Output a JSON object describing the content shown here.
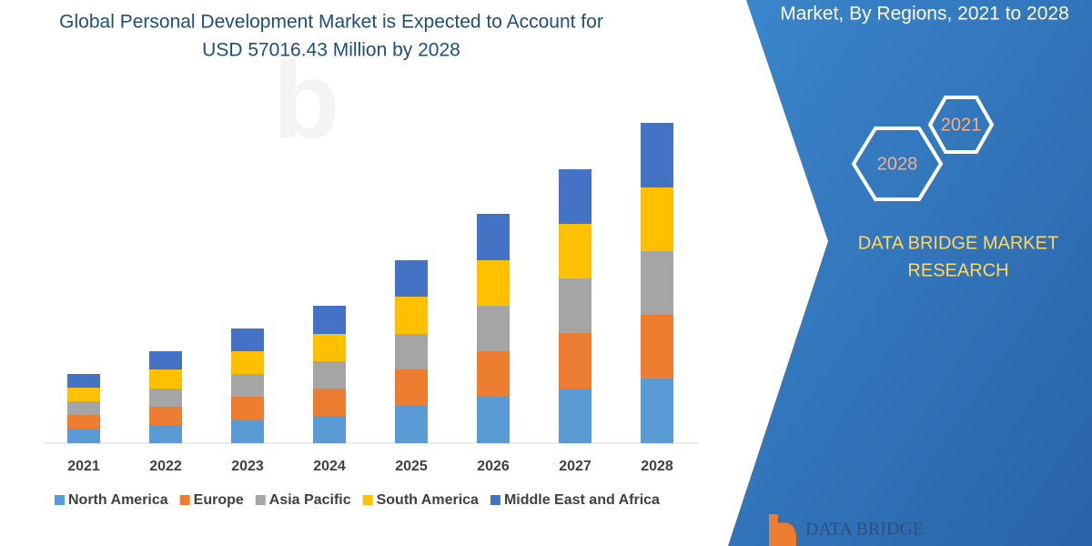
{
  "chart_data": {
    "type": "stacked_bar",
    "title": [
      "Global Personal Development Market is Expected to Account for",
      "USD 57016.43 Million by 2028"
    ],
    "categories": [
      "2021",
      "2022",
      "2023",
      "2024",
      "2025",
      "2026",
      "2027",
      "2028"
    ],
    "series": [
      {
        "name": "North America",
        "color": "#5b9bd5",
        "values": [
          16,
          20,
          26,
          30,
          41,
          51,
          60,
          71
        ]
      },
      {
        "name": "Europe",
        "color": "#ed7d31",
        "values": [
          15,
          20,
          25,
          30,
          40,
          50,
          61,
          70
        ]
      },
      {
        "name": "Asia Pacific",
        "color": "#a5a5a5",
        "values": [
          15,
          20,
          25,
          30,
          39,
          50,
          60,
          70
        ]
      },
      {
        "name": "South America",
        "color": "#ffc000",
        "values": [
          15,
          21,
          25,
          30,
          41,
          50,
          60,
          70
        ]
      },
      {
        "name": "Middle East and Africa",
        "color": "#4472c4",
        "values": [
          15,
          20,
          25,
          31,
          40,
          51,
          60,
          71
        ]
      }
    ],
    "legend": "bottom"
  },
  "panel": {
    "heading": "Market, By Regions, 2021 to 2028",
    "hex_1": "2021",
    "hex_2": "2028",
    "brand": [
      "DATA BRIDGE MARKET",
      "RESEARCH"
    ],
    "logo": "DATA BRIDGE"
  }
}
